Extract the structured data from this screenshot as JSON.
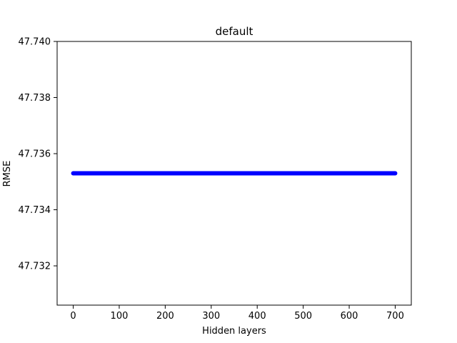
{
  "chart_data": {
    "type": "scatter",
    "title": "default",
    "xlabel": "Hidden layers",
    "ylabel": "RMSE",
    "xlim": [
      -35,
      735
    ],
    "ylim": [
      47.7306,
      47.74
    ],
    "xticks": [
      0,
      100,
      200,
      300,
      400,
      500,
      600,
      700
    ],
    "xtick_labels": [
      "0",
      "100",
      "200",
      "300",
      "400",
      "500",
      "600",
      "700"
    ],
    "yticks": [
      47.732,
      47.734,
      47.736,
      47.738,
      47.74
    ],
    "ytick_labels": [
      "47.732",
      "47.734",
      "47.736",
      "47.738",
      "47.740"
    ],
    "grid": false,
    "series": [
      {
        "color": "#0000ff",
        "marker": "circle",
        "x_start": 0,
        "x_end": 700,
        "x_step": 1,
        "y_constant": 47.7353
      }
    ]
  }
}
